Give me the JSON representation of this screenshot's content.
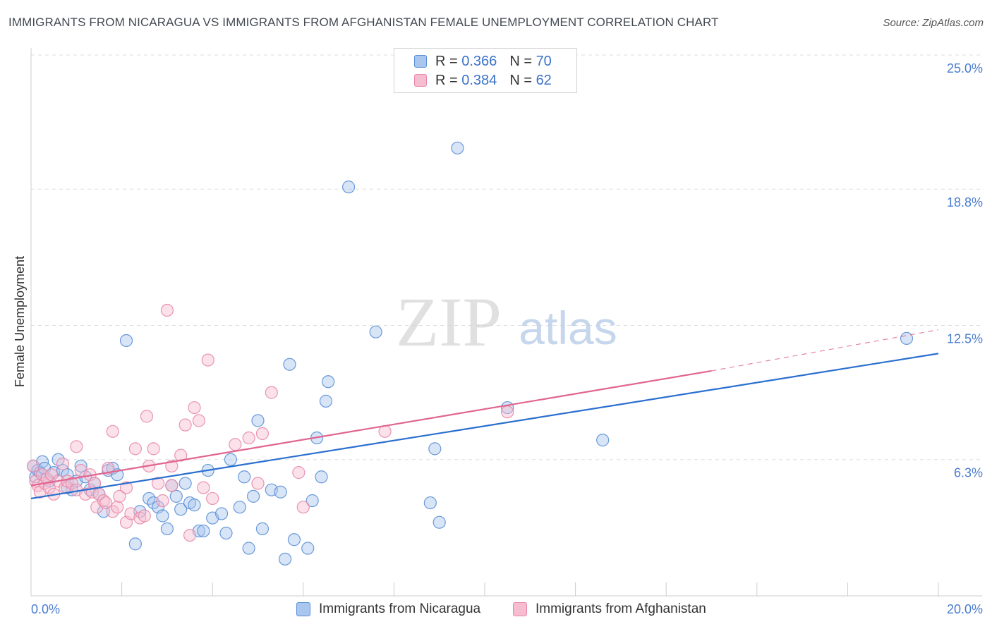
{
  "chart_title": "IMMIGRANTS FROM NICARAGUA VS IMMIGRANTS FROM AFGHANISTAN FEMALE UNEMPLOYMENT CORRELATION CHART",
  "source_label": "Source: ZipAtlas.com",
  "colors": {
    "blue_fill": "#a9c6ee",
    "blue_stroke": "#5b8fd6",
    "blue_line": "#2a6fcf",
    "pink_fill": "#f6bcd0",
    "pink_stroke": "#e88aa9",
    "pink_line": "#e0648e",
    "tick_text": "#4a7ccf",
    "grid": "#dddddd"
  },
  "legend": {
    "r_label": "R =",
    "n_label": "N =",
    "series": [
      {
        "name": "Immigrants from Nicaragua",
        "r": "0.366",
        "n": "70"
      },
      {
        "name": "Immigrants from Afghanistan",
        "r": "0.384",
        "n": "62"
      }
    ]
  },
  "watermark": {
    "zip": "ZIP",
    "atlas": "atlas"
  },
  "chart_data": {
    "type": "scatter",
    "title": "IMMIGRANTS FROM NICARAGUA VS IMMIGRANTS FROM AFGHANISTAN FEMALE UNEMPLOYMENT CORRELATION CHART",
    "xlabel": "",
    "ylabel": "Female Unemployment",
    "xlim": [
      0,
      20
    ],
    "ylim": [
      0,
      25
    ],
    "x_tick_labels": [
      "0.0%",
      "20.0%"
    ],
    "y_ticks": [
      6.3,
      12.5,
      18.8,
      25.0
    ],
    "y_tick_labels": [
      "6.3%",
      "12.5%",
      "18.8%",
      "25.0%"
    ],
    "grid": true,
    "legend_position": "top-center",
    "series": [
      {
        "name": "Immigrants from Nicaragua",
        "r": 0.366,
        "n": 70,
        "trend": {
          "x": [
            0,
            20
          ],
          "y": [
            4.5,
            11.2
          ]
        },
        "points": [
          [
            0.05,
            6.0
          ],
          [
            0.1,
            5.5
          ],
          [
            0.15,
            5.8
          ],
          [
            0.2,
            5.7
          ],
          [
            0.25,
            6.2
          ],
          [
            0.3,
            5.9
          ],
          [
            0.4,
            5.3
          ],
          [
            0.5,
            5.7
          ],
          [
            0.6,
            6.3
          ],
          [
            0.7,
            5.8
          ],
          [
            0.8,
            5.6
          ],
          [
            0.9,
            4.9
          ],
          [
            1.0,
            5.3
          ],
          [
            1.1,
            6.0
          ],
          [
            1.2,
            5.5
          ],
          [
            1.3,
            4.9
          ],
          [
            1.4,
            5.2
          ],
          [
            1.5,
            4.7
          ],
          [
            1.6,
            3.9
          ],
          [
            1.7,
            5.8
          ],
          [
            1.8,
            5.9
          ],
          [
            1.9,
            5.6
          ],
          [
            2.1,
            11.8
          ],
          [
            2.3,
            2.4
          ],
          [
            2.4,
            3.9
          ],
          [
            2.6,
            4.5
          ],
          [
            2.7,
            4.3
          ],
          [
            2.8,
            4.1
          ],
          [
            2.9,
            3.7
          ],
          [
            3.0,
            3.1
          ],
          [
            3.1,
            5.1
          ],
          [
            3.2,
            4.6
          ],
          [
            3.3,
            4.0
          ],
          [
            3.4,
            5.2
          ],
          [
            3.5,
            4.3
          ],
          [
            3.6,
            4.2
          ],
          [
            3.7,
            3.0
          ],
          [
            3.8,
            3.0
          ],
          [
            3.9,
            5.8
          ],
          [
            4.0,
            3.6
          ],
          [
            4.2,
            3.8
          ],
          [
            4.3,
            2.9
          ],
          [
            4.4,
            6.3
          ],
          [
            4.6,
            4.1
          ],
          [
            4.7,
            5.5
          ],
          [
            4.8,
            2.2
          ],
          [
            4.9,
            4.6
          ],
          [
            5.1,
            3.1
          ],
          [
            5.0,
            8.1
          ],
          [
            5.3,
            4.9
          ],
          [
            5.5,
            4.8
          ],
          [
            5.6,
            1.7
          ],
          [
            5.7,
            10.7
          ],
          [
            5.8,
            2.6
          ],
          [
            6.1,
            2.2
          ],
          [
            6.2,
            4.4
          ],
          [
            6.3,
            7.3
          ],
          [
            6.4,
            5.5
          ],
          [
            6.5,
            9.0
          ],
          [
            6.55,
            9.9
          ],
          [
            7.6,
            12.2
          ],
          [
            8.8,
            4.3
          ],
          [
            8.9,
            6.8
          ],
          [
            9.0,
            3.4
          ],
          [
            9.4,
            20.7
          ],
          [
            10.5,
            8.7
          ],
          [
            12.6,
            7.2
          ],
          [
            7.0,
            18.9
          ],
          [
            19.3,
            11.9
          ],
          [
            0.8,
            5.0
          ]
        ]
      },
      {
        "name": "Immigrants from Afghanistan",
        "r": 0.384,
        "n": 62,
        "trend": {
          "x": [
            0,
            15
          ],
          "y": [
            5.1,
            10.4
          ]
        },
        "trend_dashed": {
          "x": [
            15,
            20
          ],
          "y": [
            10.4,
            12.3
          ]
        },
        "points": [
          [
            0.05,
            6.0
          ],
          [
            0.1,
            5.3
          ],
          [
            0.15,
            5.1
          ],
          [
            0.2,
            4.8
          ],
          [
            0.25,
            5.6
          ],
          [
            0.3,
            5.2
          ],
          [
            0.35,
            5.4
          ],
          [
            0.4,
            5.0
          ],
          [
            0.45,
            5.6
          ],
          [
            0.5,
            4.7
          ],
          [
            0.6,
            5.3
          ],
          [
            0.7,
            6.1
          ],
          [
            0.75,
            5.0
          ],
          [
            0.8,
            5.3
          ],
          [
            0.9,
            5.2
          ],
          [
            1.0,
            4.9
          ],
          [
            1.0,
            6.9
          ],
          [
            1.1,
            5.8
          ],
          [
            1.2,
            4.7
          ],
          [
            1.3,
            5.6
          ],
          [
            1.35,
            4.8
          ],
          [
            1.4,
            5.2
          ],
          [
            1.45,
            4.1
          ],
          [
            1.5,
            4.7
          ],
          [
            1.6,
            4.4
          ],
          [
            1.65,
            4.3
          ],
          [
            1.7,
            5.9
          ],
          [
            1.8,
            3.9
          ],
          [
            1.8,
            7.6
          ],
          [
            1.9,
            4.1
          ],
          [
            1.95,
            4.6
          ],
          [
            2.1,
            5.0
          ],
          [
            2.1,
            3.4
          ],
          [
            2.2,
            3.8
          ],
          [
            2.3,
            6.8
          ],
          [
            2.4,
            3.6
          ],
          [
            2.5,
            3.7
          ],
          [
            2.55,
            8.3
          ],
          [
            2.6,
            6.0
          ],
          [
            2.7,
            6.8
          ],
          [
            2.8,
            5.2
          ],
          [
            2.9,
            4.4
          ],
          [
            3.0,
            13.2
          ],
          [
            3.1,
            5.1
          ],
          [
            3.1,
            6.0
          ],
          [
            3.3,
            6.5
          ],
          [
            3.4,
            7.9
          ],
          [
            3.5,
            2.8
          ],
          [
            3.6,
            8.7
          ],
          [
            3.7,
            8.1
          ],
          [
            3.8,
            5.0
          ],
          [
            3.9,
            10.9
          ],
          [
            4.0,
            4.5
          ],
          [
            4.5,
            7.0
          ],
          [
            4.8,
            7.3
          ],
          [
            5.0,
            5.2
          ],
          [
            5.1,
            7.5
          ],
          [
            5.3,
            9.4
          ],
          [
            5.9,
            5.7
          ],
          [
            6.0,
            4.1
          ],
          [
            7.8,
            7.6
          ],
          [
            10.5,
            8.5
          ]
        ]
      }
    ]
  }
}
